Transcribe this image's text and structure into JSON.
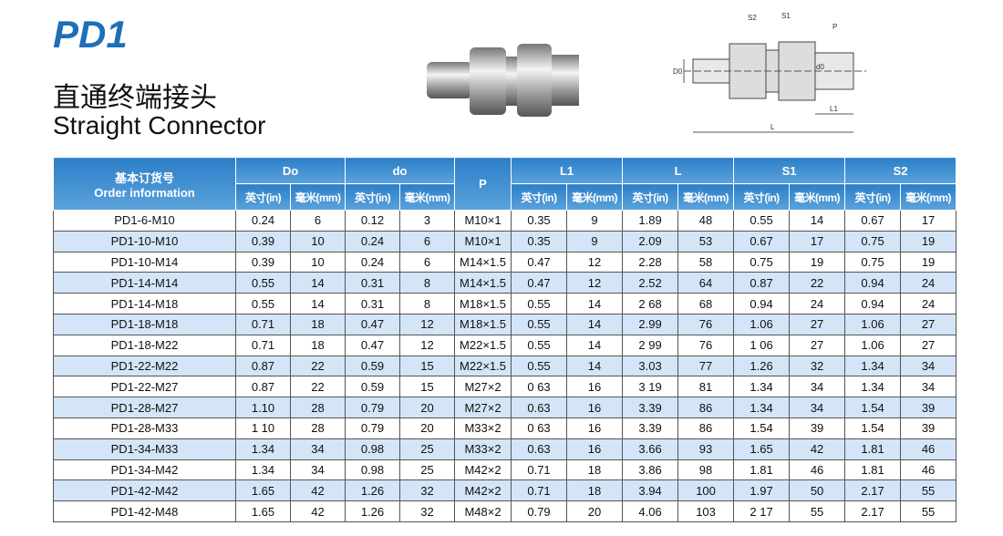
{
  "header": {
    "code": "PD1",
    "title_cn": "直通终端接头",
    "title_en": "Straight Connector"
  },
  "diagram": {
    "labels": [
      "S2",
      "S1",
      "P",
      "D0",
      "d0",
      "L1",
      "L"
    ]
  },
  "table": {
    "columns": {
      "order_cn": "基本订货号",
      "order_en": "Order information",
      "groups": [
        "Do",
        "do",
        "P",
        "L1",
        "L",
        "S1",
        "S2"
      ]
    },
    "units": [
      "英寸(in)",
      "毫米(mm)"
    ],
    "rows": [
      [
        "PD1-6-M10",
        "0.24",
        "6",
        "0.12",
        "3",
        "M10×1",
        "0.35",
        "9",
        "1.89",
        "48",
        "0.55",
        "14",
        "0.67",
        "17"
      ],
      [
        "PD1-10-M10",
        "0.39",
        "10",
        "0.24",
        "6",
        "M10×1",
        "0.35",
        "9",
        "2.09",
        "53",
        "0.67",
        "17",
        "0.75",
        "19"
      ],
      [
        "PD1-10-M14",
        "0.39",
        "10",
        "0.24",
        "6",
        "M14×1.5",
        "0.47",
        "12",
        "2.28",
        "58",
        "0.75",
        "19",
        "0.75",
        "19"
      ],
      [
        "PD1-14-M14",
        "0.55",
        "14",
        "0.31",
        "8",
        "M14×1.5",
        "0.47",
        "12",
        "2.52",
        "64",
        "0.87",
        "22",
        "0.94",
        "24"
      ],
      [
        "PD1-14-M18",
        "0.55",
        "14",
        "0.31",
        "8",
        "M18×1.5",
        "0.55",
        "14",
        "2 68",
        "68",
        "0.94",
        "24",
        "0.94",
        "24"
      ],
      [
        "PD1-18-M18",
        "0.71",
        "18",
        "0.47",
        "12",
        "M18×1.5",
        "0.55",
        "14",
        "2.99",
        "76",
        "1.06",
        "27",
        "1.06",
        "27"
      ],
      [
        "PD1-18-M22",
        "0.71",
        "18",
        "0.47",
        "12",
        "M22×1.5",
        "0.55",
        "14",
        "2 99",
        "76",
        "1 06",
        "27",
        "1.06",
        "27"
      ],
      [
        "PD1-22-M22",
        "0.87",
        "22",
        "0.59",
        "15",
        "M22×1.5",
        "0.55",
        "14",
        "3.03",
        "77",
        "1.26",
        "32",
        "1.34",
        "34"
      ],
      [
        "PD1-22-M27",
        "0.87",
        "22",
        "0.59",
        "15",
        "M27×2",
        "0 63",
        "16",
        "3 19",
        "81",
        "1.34",
        "34",
        "1.34",
        "34"
      ],
      [
        "PD1-28-M27",
        "1.10",
        "28",
        "0.79",
        "20",
        "M27×2",
        "0.63",
        "16",
        "3.39",
        "86",
        "1.34",
        "34",
        "1.54",
        "39"
      ],
      [
        "PD1-28-M33",
        "1 10",
        "28",
        "0.79",
        "20",
        "M33×2",
        "0 63",
        "16",
        "3.39",
        "86",
        "1.54",
        "39",
        "1.54",
        "39"
      ],
      [
        "PD1-34-M33",
        "1.34",
        "34",
        "0.98",
        "25",
        "M33×2",
        "0.63",
        "16",
        "3.66",
        "93",
        "1.65",
        "42",
        "1.81",
        "46"
      ],
      [
        "PD1-34-M42",
        "1.34",
        "34",
        "0.98",
        "25",
        "M42×2",
        "0.71",
        "18",
        "3.86",
        "98",
        "1.81",
        "46",
        "1.81",
        "46"
      ],
      [
        "PD1-42-M42",
        "1.65",
        "42",
        "1.26",
        "32",
        "M42×2",
        "0.71",
        "18",
        "3.94",
        "100",
        "1.97",
        "50",
        "2.17",
        "55"
      ],
      [
        "PD1-42-M48",
        "1.65",
        "42",
        "1.26",
        "32",
        "M48×2",
        "0.79",
        "20",
        "4.06",
        "103",
        "2 17",
        "55",
        "2.17",
        "55"
      ]
    ]
  }
}
